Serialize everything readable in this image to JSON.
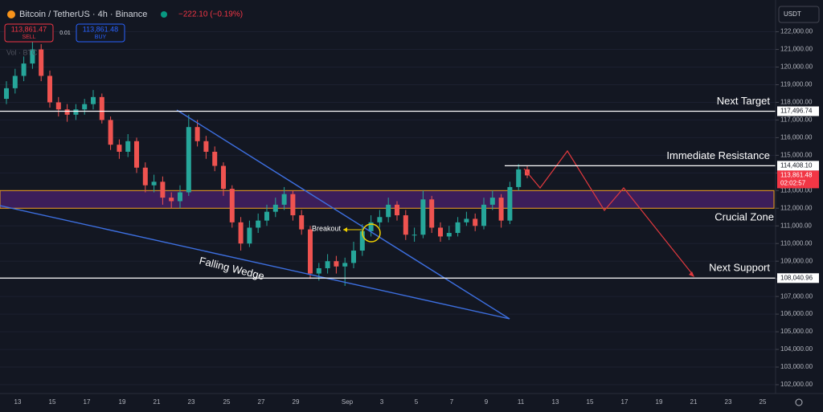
{
  "header": {
    "symbol": "Bitcoin / TetherUS · 4h · Binance",
    "change": "−222.10 (−0.19%)",
    "sell_price": "113,861.47",
    "sell": "SELL",
    "spread": "0.01",
    "buy_price": "113,861.48",
    "buy": "BUY",
    "volume": "Vol · BTC",
    "currency": "USDT"
  },
  "chart_data": {
    "type": "candlestick",
    "x_axis_labels": [
      "13",
      "15",
      "17",
      "19",
      "21",
      "23",
      "25",
      "27",
      "29",
      "Sep",
      "3",
      "5",
      "7",
      "9",
      "11",
      "13",
      "15",
      "17",
      "19",
      "21",
      "23",
      "25"
    ],
    "open": [
      118200,
      118800,
      119500,
      120200,
      121000,
      119500,
      118000,
      117600,
      117300,
      117600,
      117900,
      118300,
      117000,
      115600,
      115200,
      115800,
      114300,
      113300,
      113500,
      112600,
      112400,
      112900,
      116600,
      115800,
      115200,
      114400,
      113100,
      111200,
      110000,
      110900,
      111300,
      111800,
      112200,
      112800,
      111600,
      110800,
      108300,
      108600,
      109000,
      108700,
      108900,
      109600,
      110700,
      111200,
      111500,
      112200,
      111600,
      110500,
      110500,
      112500,
      110900,
      110400,
      110600,
      111200,
      111400,
      111000,
      112200,
      112600,
      111300,
      113200,
      114200
    ],
    "high": [
      119200,
      119900,
      120600,
      121700,
      121300,
      119800,
      118300,
      117900,
      117900,
      118200,
      118700,
      118500,
      117200,
      115900,
      116200,
      116000,
      114600,
      113900,
      113800,
      112900,
      113300,
      117300,
      117000,
      116100,
      115500,
      114600,
      113300,
      111500,
      111300,
      111700,
      112200,
      112600,
      113200,
      113000,
      111900,
      111000,
      108900,
      109400,
      109300,
      109200,
      110100,
      111100,
      111600,
      111900,
      112600,
      112400,
      111900,
      110900,
      113000,
      112700,
      111200,
      111000,
      111500,
      111800,
      111700,
      112600,
      113000,
      112800,
      113500,
      114500,
      114400
    ],
    "low": [
      117900,
      118500,
      119200,
      119900,
      119200,
      117700,
      117200,
      116900,
      117000,
      117300,
      117600,
      116800,
      115300,
      114800,
      114900,
      114000,
      112900,
      112900,
      112200,
      112000,
      112000,
      112700,
      115500,
      114800,
      114100,
      112700,
      110900,
      109600,
      109800,
      110600,
      111000,
      111500,
      111900,
      111300,
      110500,
      108000,
      107900,
      108300,
      108300,
      107600,
      108600,
      109300,
      110400,
      110900,
      111200,
      111300,
      110200,
      110100,
      110300,
      110600,
      110100,
      110200,
      110400,
      111000,
      110700,
      110800,
      111900,
      110900,
      111100,
      113000,
      113700
    ],
    "close": [
      118800,
      119500,
      120200,
      121000,
      119500,
      118000,
      117600,
      117300,
      117600,
      117900,
      118300,
      117000,
      115600,
      115200,
      115800,
      114300,
      113300,
      113500,
      112600,
      112400,
      112900,
      116600,
      115800,
      115200,
      114400,
      113100,
      111200,
      110000,
      110900,
      111300,
      111800,
      112200,
      112800,
      111600,
      110800,
      108300,
      108600,
      109000,
      108700,
      108900,
      109600,
      110700,
      111200,
      111500,
      112200,
      111600,
      110500,
      110500,
      112500,
      110900,
      110400,
      110600,
      111200,
      111400,
      111000,
      112200,
      112600,
      111300,
      113200,
      114200,
      113861.48
    ],
    "up_color": "#26a69a",
    "down_color": "#ef5350",
    "ylim": [
      101500,
      123800
    ],
    "yticks": [
      {
        "value": 122000,
        "label": "122,000.00"
      },
      {
        "value": 121000,
        "label": "121,000.00"
      },
      {
        "value": 120000,
        "label": "120,000.00"
      },
      {
        "value": 119000,
        "label": "119,000.00"
      },
      {
        "value": 118000,
        "label": "118,000.00"
      },
      {
        "value": 117000,
        "label": "117,000.00"
      },
      {
        "value": 116000,
        "label": "116,000.00"
      },
      {
        "value": 115000,
        "label": "115,000.00"
      },
      {
        "value": 114000,
        "label": "114,000.00"
      },
      {
        "value": 113000,
        "label": "113,000.00"
      },
      {
        "value": 112000,
        "label": "112,000.00"
      },
      {
        "value": 111000,
        "label": "111,000.00"
      },
      {
        "value": 110000,
        "label": "110,000.00"
      },
      {
        "value": 109000,
        "label": "109,000.00"
      },
      {
        "value": 108000,
        "label": "108,000.00"
      },
      {
        "value": 107000,
        "label": "107,000.00"
      },
      {
        "value": 106000,
        "label": "106,000.00"
      },
      {
        "value": 105000,
        "label": "105,000.00"
      },
      {
        "value": 104000,
        "label": "104,000.00"
      },
      {
        "value": 103000,
        "label": "103,000.00"
      },
      {
        "value": 102000,
        "label": "102,000.00"
      }
    ],
    "levels": [
      {
        "name": "Next Target",
        "value": 117496.74,
        "value_label": "117,496.74"
      },
      {
        "name": "Immediate Resistance",
        "value": 114408.1,
        "value_label": "114,408.10"
      },
      {
        "name": "Next Support",
        "value": 108040.96,
        "value_label": "108,040.96"
      }
    ],
    "zone": {
      "name": "Crucial Zone",
      "low": 112000,
      "high": 113000
    },
    "last_price": 113861.48,
    "last_price_label": "113,861.48",
    "countdown": "02:02:57",
    "annotations": [
      "Breakout",
      "Falling Wedge"
    ]
  }
}
